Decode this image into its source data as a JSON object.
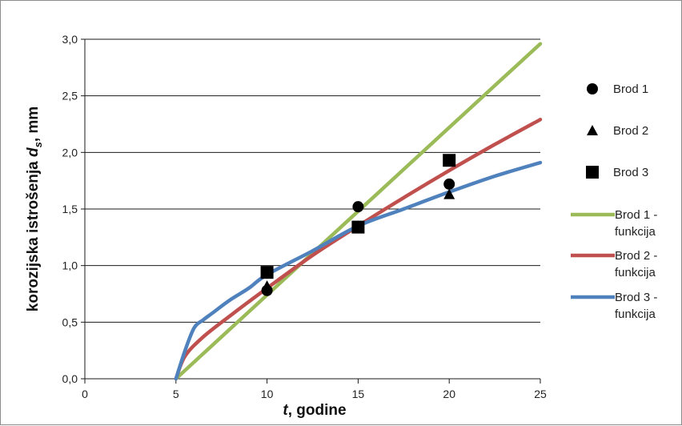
{
  "chart_data": {
    "type": "scatter",
    "x_axis": {
      "label_var": "t",
      "label_rest": ", godine",
      "range": [
        0,
        25
      ],
      "ticks": [
        0,
        5,
        10,
        15,
        20,
        25
      ],
      "tick_labels": [
        "0",
        "5",
        "10",
        "15",
        "20",
        "25"
      ]
    },
    "y_axis": {
      "label_prefix": "korozijska istrošenja ",
      "label_var": "d",
      "label_sub": "s",
      "label_suffix": ", mm",
      "range": [
        0,
        3.0
      ],
      "ticks": [
        0,
        0.5,
        1.0,
        1.5,
        2.0,
        2.5,
        3.0
      ],
      "tick_labels": [
        "0,0",
        "0,5",
        "1,0",
        "1,5",
        "2,0",
        "2,5",
        "3,0"
      ]
    },
    "grid": "horizontal",
    "legend_position": "right",
    "series": [
      {
        "name": "Brod 1",
        "kind": "markers",
        "marker": "circle",
        "color": "#000000",
        "points": [
          [
            10,
            0.78
          ],
          [
            15,
            1.52
          ],
          [
            20,
            1.72
          ]
        ]
      },
      {
        "name": "Brod 2",
        "kind": "markers",
        "marker": "triangle",
        "color": "#000000",
        "points": [
          [
            10,
            0.82
          ],
          [
            15,
            1.35
          ],
          [
            20,
            1.63
          ]
        ]
      },
      {
        "name": "Brod 3",
        "kind": "markers",
        "marker": "square",
        "color": "#000000",
        "points": [
          [
            10,
            0.94
          ],
          [
            15,
            1.34
          ],
          [
            20,
            1.93
          ]
        ]
      },
      {
        "name": "Brod 1 - funkcija",
        "kind": "line",
        "color": "#9bbb59",
        "points": [
          [
            5,
            0
          ],
          [
            7.5,
            0.37
          ],
          [
            10,
            0.74
          ],
          [
            12.5,
            1.11
          ],
          [
            15,
            1.48
          ],
          [
            17.5,
            1.85
          ],
          [
            20,
            2.22
          ],
          [
            22.5,
            2.59
          ],
          [
            25,
            2.96
          ]
        ]
      },
      {
        "name": "Brod 2 - funkcija",
        "kind": "line",
        "color": "#c0504d",
        "points": [
          [
            5,
            0
          ],
          [
            5.5,
            0.2
          ],
          [
            6.5,
            0.37
          ],
          [
            8,
            0.56
          ],
          [
            10,
            0.8
          ],
          [
            12.5,
            1.09
          ],
          [
            15,
            1.35
          ],
          [
            17.5,
            1.6
          ],
          [
            20,
            1.84
          ],
          [
            22.5,
            2.07
          ],
          [
            25,
            2.29
          ]
        ]
      },
      {
        "name": "Brod 3 - funkcija",
        "kind": "line",
        "color": "#4f81bd",
        "points": [
          [
            5,
            0
          ],
          [
            5.5,
            0.25
          ],
          [
            6,
            0.45
          ],
          [
            6.5,
            0.52
          ],
          [
            7,
            0.58
          ],
          [
            8,
            0.7
          ],
          [
            9,
            0.8
          ],
          [
            10,
            0.92
          ],
          [
            12.5,
            1.13
          ],
          [
            15,
            1.35
          ],
          [
            17.5,
            1.5
          ],
          [
            20,
            1.65
          ],
          [
            22.5,
            1.79
          ],
          [
            25,
            1.91
          ]
        ]
      }
    ]
  }
}
